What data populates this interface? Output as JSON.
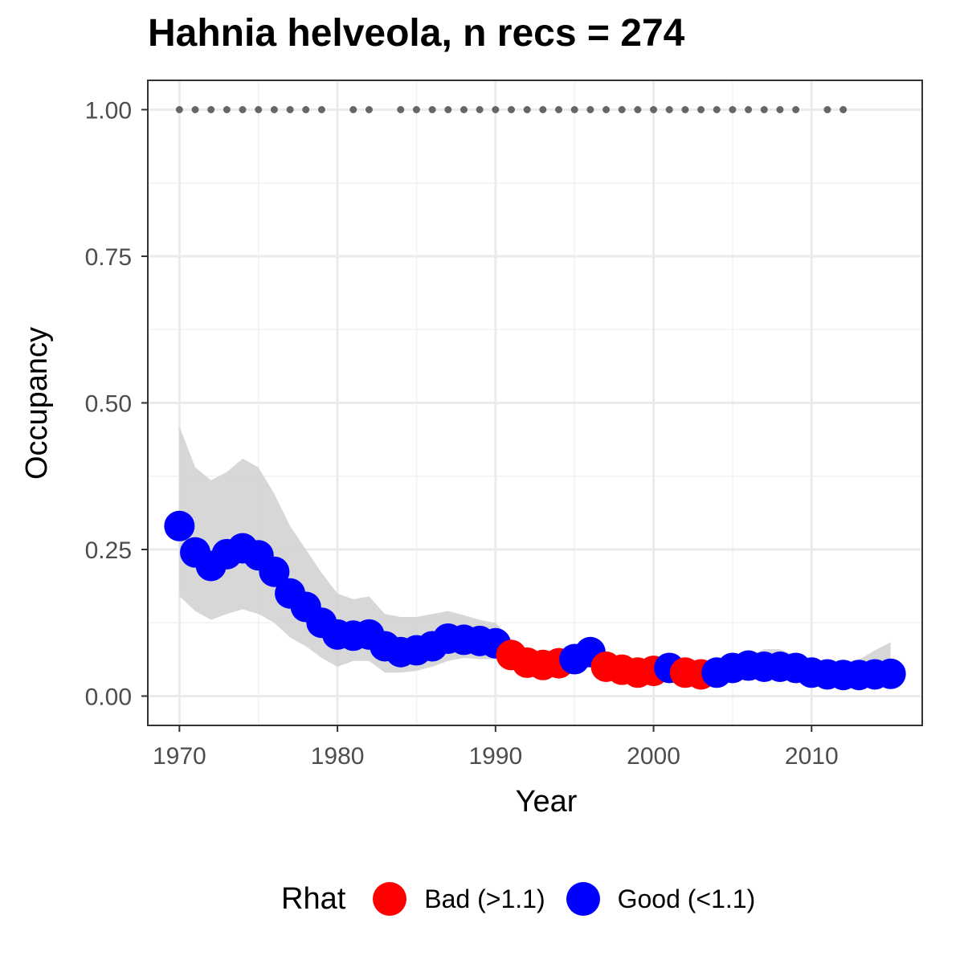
{
  "chart_data": {
    "type": "scatter",
    "title": "Hahnia helveola, n recs = 274",
    "xlabel": "Year",
    "ylabel": "Occupancy",
    "xlim": [
      1968,
      2017
    ],
    "ylim": [
      -0.05,
      1.05
    ],
    "x_ticks": [
      1970,
      1980,
      1990,
      2000,
      2010
    ],
    "x_tick_labels": [
      "1970",
      "1980",
      "1990",
      "2000",
      "2010"
    ],
    "y_ticks": [
      0,
      0.25,
      0.5,
      0.75,
      1
    ],
    "y_tick_labels": [
      "0.00",
      "0.25",
      "0.50",
      "0.75",
      "1.00"
    ],
    "grid": true,
    "legend": {
      "title": "Rhat",
      "position": "bottom",
      "entries": [
        {
          "label": "Bad (>1.1)",
          "color": "#ff0000"
        },
        {
          "label": "Good (<1.1)",
          "color": "#0000ff"
        }
      ]
    },
    "colors": {
      "bad": "#ff0000",
      "good": "#0000ff",
      "ribbon": "#d3d3d3",
      "record_dots": "#666666"
    },
    "record_years": [
      1970,
      1971,
      1972,
      1973,
      1974,
      1975,
      1976,
      1977,
      1978,
      1979,
      1981,
      1982,
      1984,
      1985,
      1986,
      1987,
      1988,
      1989,
      1990,
      1991,
      1992,
      1993,
      1994,
      1995,
      1996,
      1997,
      1998,
      1999,
      2000,
      2001,
      2002,
      2003,
      2004,
      2005,
      2006,
      2007,
      2008,
      2009,
      2011,
      2012
    ],
    "record_y": 1.0,
    "series": [
      {
        "x": [
          1970,
          1971,
          1972,
          1973,
          1974,
          1975,
          1976,
          1977,
          1978,
          1979,
          1980,
          1981,
          1982,
          1983,
          1984,
          1985,
          1986,
          1987,
          1988,
          1989,
          1990,
          1991,
          1992,
          1993,
          1994,
          1995,
          1996,
          1997,
          1998,
          1999,
          2000,
          2001,
          2002,
          2003,
          2004,
          2005,
          2006,
          2007,
          2008,
          2009,
          2010,
          2011,
          2012,
          2013,
          2014,
          2015
        ],
        "y": [
          0.29,
          0.245,
          0.222,
          0.242,
          0.252,
          0.24,
          0.212,
          0.175,
          0.152,
          0.125,
          0.105,
          0.103,
          0.105,
          0.085,
          0.075,
          0.078,
          0.085,
          0.098,
          0.096,
          0.094,
          0.09,
          0.07,
          0.057,
          0.053,
          0.056,
          0.063,
          0.075,
          0.05,
          0.045,
          0.04,
          0.043,
          0.048,
          0.04,
          0.037,
          0.04,
          0.048,
          0.052,
          0.05,
          0.05,
          0.048,
          0.04,
          0.037,
          0.036,
          0.036,
          0.037,
          0.038
        ],
        "rhat": [
          "good",
          "good",
          "good",
          "good",
          "good",
          "good",
          "good",
          "good",
          "good",
          "good",
          "good",
          "good",
          "good",
          "good",
          "good",
          "good",
          "good",
          "good",
          "good",
          "good",
          "good",
          "bad",
          "bad",
          "bad",
          "bad",
          "good",
          "good",
          "bad",
          "bad",
          "bad",
          "bad",
          "good",
          "bad",
          "bad",
          "good",
          "good",
          "good",
          "good",
          "good",
          "good",
          "good",
          "good",
          "good",
          "good",
          "good",
          "good"
        ],
        "lower": [
          0.17,
          0.145,
          0.13,
          0.14,
          0.148,
          0.14,
          0.125,
          0.1,
          0.085,
          0.065,
          0.05,
          0.06,
          0.06,
          0.04,
          0.04,
          0.043,
          0.05,
          0.06,
          0.065,
          0.063,
          0.063,
          0.05,
          0.043,
          0.04,
          0.04,
          0.042,
          0.05,
          0.036,
          0.032,
          0.028,
          0.03,
          0.034,
          0.028,
          0.025,
          0.028,
          0.035,
          0.038,
          0.037,
          0.037,
          0.035,
          0.03,
          0.027,
          0.027,
          0.026,
          0.026,
          0.026
        ],
        "upper": [
          0.46,
          0.39,
          0.368,
          0.382,
          0.405,
          0.39,
          0.345,
          0.29,
          0.25,
          0.21,
          0.175,
          0.165,
          0.17,
          0.14,
          0.135,
          0.135,
          0.14,
          0.145,
          0.138,
          0.13,
          0.125,
          0.098,
          0.08,
          0.073,
          0.078,
          0.088,
          0.095,
          0.068,
          0.06,
          0.055,
          0.058,
          0.064,
          0.055,
          0.052,
          0.055,
          0.062,
          0.068,
          0.08,
          0.08,
          0.068,
          0.06,
          0.056,
          0.057,
          0.062,
          0.078,
          0.092
        ]
      }
    ]
  }
}
